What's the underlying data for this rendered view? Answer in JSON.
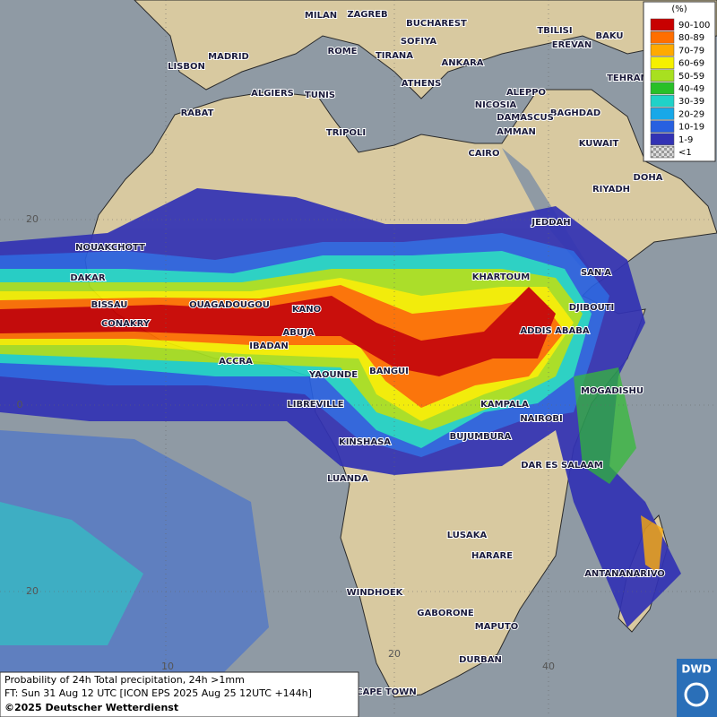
{
  "map": {
    "cities": [
      "MILAN",
      "ZAGREB",
      "BUCHAREST",
      "TBILISI",
      "BAKU",
      "MADRID",
      "ROME",
      "SOFIYA",
      "TIRANA",
      "EREVAN",
      "ANKARA",
      "LISBON",
      "TEHRAN",
      "ATHENS",
      "ALGIERS",
      "TUNIS",
      "ALEPPO",
      "RABAT",
      "NICOSIA",
      "BAGHDAD",
      "DAMASCUS",
      "TRIPOLI",
      "AMMAN",
      "KUWAIT",
      "CAIRO",
      "DOHA",
      "RIYADH",
      "JEDDAH",
      "NOUAKCHOTT",
      "DAKAR",
      "KHARTOUM",
      "SAN'A",
      "BISSAU",
      "OUAGADOUGOU",
      "KANO",
      "DJIBOUTI",
      "CONAKRY",
      "ABUJA",
      "ADDIS ABABA",
      "IBADAN",
      "ACCRA",
      "BANGUI",
      "YAOUNDE",
      "MOGADISHU",
      "LIBREVILLE",
      "KAMPALA",
      "NAIROBI",
      "BUJUMBURA",
      "KINSHASA",
      "DAR ES SALAAM",
      "LUANDA",
      "LUSAKA",
      "HARARE",
      "ANTANANARIVO",
      "WINDHOEK",
      "GABORONE",
      "MAPUTO",
      "DURBAN",
      "CAPE TOWN"
    ],
    "latitude_labels": [
      "20",
      "0",
      "20"
    ],
    "longitude_labels": [
      "10",
      "20",
      "40"
    ]
  },
  "legend": {
    "title": "(%)",
    "entries": [
      {
        "label": "90-100",
        "color": "#c80000"
      },
      {
        "label": "80-89",
        "color": "#ff6e00"
      },
      {
        "label": "70-79",
        "color": "#ffaa00"
      },
      {
        "label": "60-69",
        "color": "#f5f000"
      },
      {
        "label": "50-59",
        "color": "#a8e020"
      },
      {
        "label": "40-49",
        "color": "#28c028"
      },
      {
        "label": "30-39",
        "color": "#20d2c8"
      },
      {
        "label": "20-29",
        "color": "#18a8e8"
      },
      {
        "label": "10-19",
        "color": "#2860e0"
      },
      {
        "label": "1-9",
        "color": "#3232b4"
      },
      {
        "label": "<1",
        "color": "checker"
      }
    ]
  },
  "caption": {
    "lines": [
      "Probability of 24h Total precipitation, 24h >1mm",
      "FT: Sun 31 Aug 12 UTC [ICON EPS 2025 Aug 25 12UTC +144h]",
      "©2025 Deutscher Wetterdienst"
    ]
  },
  "logo": "DWD"
}
